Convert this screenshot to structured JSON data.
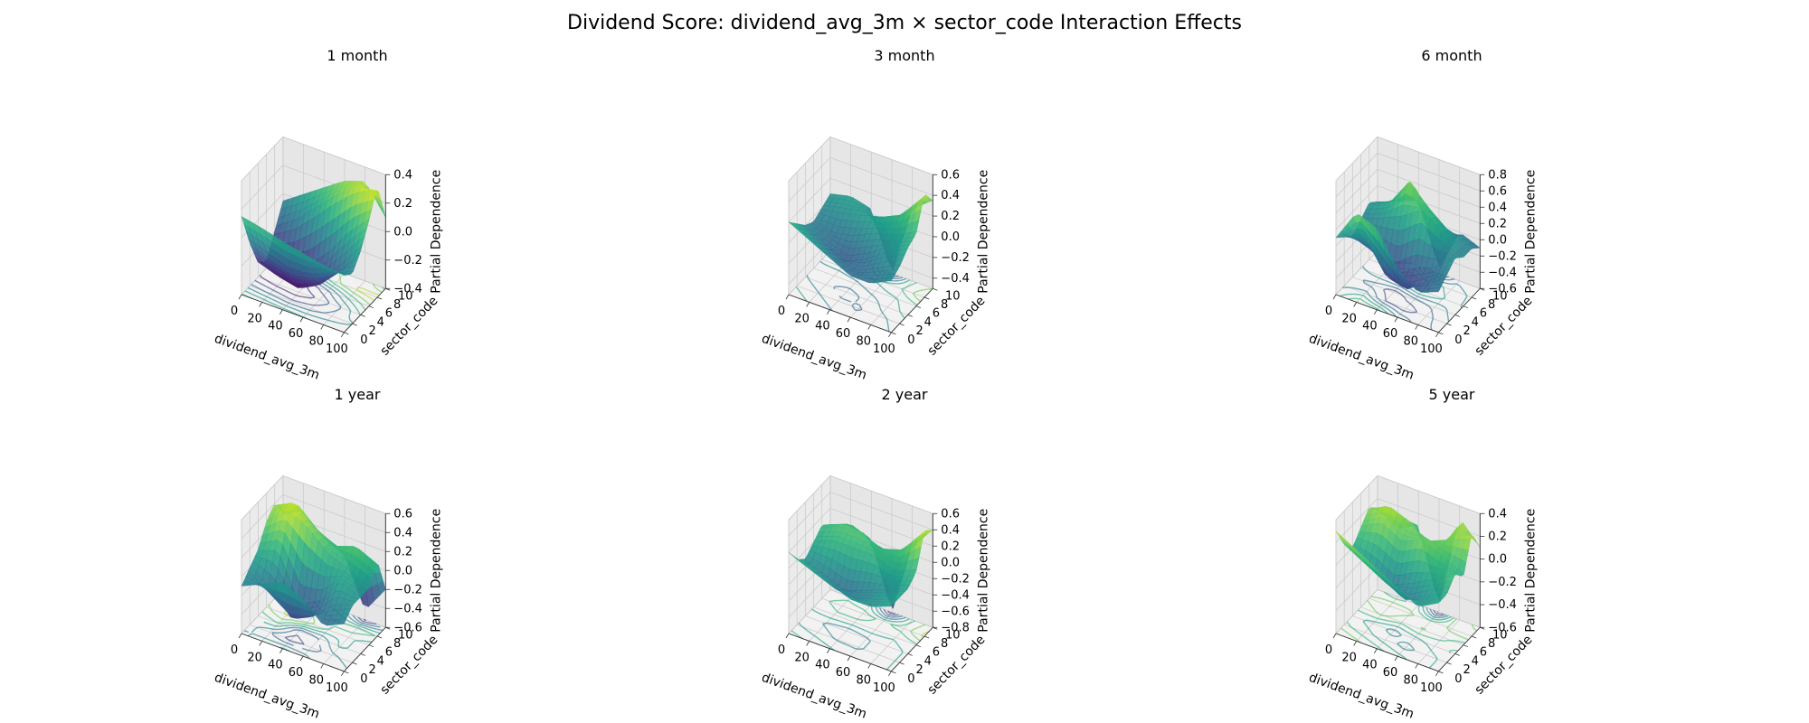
{
  "figure": {
    "title": "Dividend Score: dividend_avg_3m × sector_code Interaction Effects"
  },
  "chart_data": [
    {
      "type": "surface3d",
      "title": "1 month",
      "xlabel": "dividend_avg_3m",
      "ylabel": "sector_code",
      "zlabel": "Partial Dependence",
      "xlim": [
        0,
        100
      ],
      "ylim": [
        0,
        10
      ],
      "zlim": [
        -0.4,
        0.4
      ],
      "xticks": [
        "0",
        "20",
        "40",
        "60",
        "80",
        "100"
      ],
      "yticks": [
        "0",
        "2",
        "4",
        "6",
        "8",
        "10"
      ],
      "zticks": [
        "-0.4",
        "-0.2",
        "0.0",
        "0.2",
        "0.4"
      ],
      "grid": true,
      "colormap": "viridis",
      "x": [
        0,
        20,
        40,
        60,
        80,
        100
      ],
      "y": [
        0,
        2,
        4,
        6,
        8,
        10
      ],
      "z": [
        [
          0.15,
          0.12,
          0.08,
          0.05,
          0.02,
          0.0
        ],
        [
          -0.1,
          -0.15,
          -0.2,
          -0.18,
          -0.1,
          -0.05
        ],
        [
          -0.3,
          -0.35,
          -0.38,
          -0.3,
          -0.15,
          0.05
        ],
        [
          -0.35,
          -0.38,
          -0.3,
          -0.15,
          0.05,
          0.2
        ],
        [
          -0.2,
          -0.1,
          0.05,
          0.2,
          0.32,
          0.38
        ],
        [
          -0.05,
          0.05,
          0.15,
          0.25,
          0.3,
          0.1
        ]
      ]
    },
    {
      "type": "surface3d",
      "title": "3 month",
      "xlabel": "dividend_avg_3m",
      "ylabel": "sector_code",
      "zlabel": "Partial Dependence",
      "xlim": [
        0,
        100
      ],
      "ylim": [
        0,
        10
      ],
      "zlim": [
        -0.5,
        0.6
      ],
      "xticks": [
        "0",
        "20",
        "40",
        "60",
        "80",
        "100"
      ],
      "yticks": [
        "0",
        "2",
        "4",
        "6",
        "8",
        "10"
      ],
      "zticks": [
        "-0.4",
        "-0.2",
        "0.0",
        "0.2",
        "0.4",
        "0.6"
      ],
      "grid": true,
      "colormap": "viridis",
      "x": [
        0,
        20,
        40,
        60,
        80,
        100
      ],
      "y": [
        0,
        2,
        4,
        6,
        8,
        10
      ],
      "z": [
        [
          0.2,
          0.1,
          0.0,
          -0.1,
          -0.1,
          0.0
        ],
        [
          0.1,
          0.0,
          -0.1,
          -0.15,
          -0.05,
          0.05
        ],
        [
          0.0,
          -0.1,
          -0.2,
          -0.1,
          0.05,
          0.15
        ],
        [
          -0.05,
          -0.1,
          -0.05,
          0.05,
          0.1,
          0.2
        ],
        [
          0.0,
          0.05,
          0.1,
          0.15,
          0.25,
          0.5
        ],
        [
          0.05,
          0.1,
          0.05,
          -0.5,
          0.2,
          0.35
        ]
      ]
    },
    {
      "type": "surface3d",
      "title": "6 month",
      "xlabel": "dividend_avg_3m",
      "ylabel": "sector_code",
      "zlabel": "Partial Dependence",
      "xlim": [
        0,
        100
      ],
      "ylim": [
        0,
        10
      ],
      "zlim": [
        -0.6,
        0.8
      ],
      "xticks": [
        "0",
        "20",
        "40",
        "60",
        "80",
        "100"
      ],
      "yticks": [
        "0",
        "2",
        "4",
        "6",
        "8",
        "10"
      ],
      "zticks": [
        "-0.6",
        "-0.4",
        "-0.2",
        "0.0",
        "0.2",
        "0.4",
        "0.6",
        "0.8"
      ],
      "grid": true,
      "colormap": "viridis",
      "x": [
        0,
        20,
        40,
        60,
        80,
        100
      ],
      "y": [
        0,
        2,
        4,
        6,
        8,
        10
      ],
      "z": [
        [
          0.1,
          0.5,
          0.4,
          0.0,
          -0.2,
          -0.1
        ],
        [
          0.0,
          0.1,
          -0.3,
          -0.4,
          -0.2,
          0.0
        ],
        [
          -0.1,
          -0.2,
          -0.4,
          -0.2,
          -0.1,
          0.1
        ],
        [
          0.0,
          0.1,
          0.2,
          0.4,
          0.2,
          0.0
        ],
        [
          0.1,
          0.2,
          0.6,
          0.3,
          0.1,
          0.0
        ],
        [
          0.0,
          0.1,
          0.2,
          -0.55,
          0.0,
          -0.1
        ]
      ]
    },
    {
      "type": "surface3d",
      "title": "1 year",
      "xlabel": "dividend_avg_3m",
      "ylabel": "sector_code",
      "zlabel": "Partial Dependence",
      "xlim": [
        0,
        100
      ],
      "ylim": [
        0,
        10
      ],
      "zlim": [
        -0.6,
        0.6
      ],
      "xticks": [
        "0",
        "20",
        "40",
        "60",
        "80",
        "100"
      ],
      "yticks": [
        "0",
        "2",
        "4",
        "6",
        "8",
        "10"
      ],
      "zticks": [
        "-0.6",
        "-0.4",
        "-0.2",
        "0.0",
        "0.2",
        "0.4",
        "0.6"
      ],
      "grid": true,
      "colormap": "viridis",
      "x": [
        0,
        20,
        40,
        60,
        80,
        100
      ],
      "y": [
        0,
        2,
        4,
        6,
        8,
        10
      ],
      "z": [
        [
          -0.1,
          0.0,
          0.1,
          0.0,
          -0.2,
          -0.1
        ],
        [
          0.0,
          -0.2,
          -0.4,
          -0.3,
          -0.1,
          0.0
        ],
        [
          0.1,
          0.2,
          -0.3,
          -0.2,
          0.1,
          0.0
        ],
        [
          0.3,
          0.5,
          0.4,
          0.2,
          0.1,
          0.0
        ],
        [
          0.4,
          0.5,
          0.3,
          0.2,
          0.3,
          0.2
        ],
        [
          0.2,
          0.3,
          0.1,
          0.0,
          -0.5,
          -0.2
        ]
      ]
    },
    {
      "type": "surface3d",
      "title": "2 year",
      "xlabel": "dividend_avg_3m",
      "ylabel": "sector_code",
      "zlabel": "Partial Dependence",
      "xlim": [
        0,
        100
      ],
      "ylim": [
        0,
        10
      ],
      "zlim": [
        -0.8,
        0.6
      ],
      "xticks": [
        "0",
        "20",
        "40",
        "60",
        "80",
        "100"
      ],
      "yticks": [
        "0",
        "2",
        "4",
        "6",
        "8",
        "10"
      ],
      "zticks": [
        "-0.8",
        "-0.6",
        "-0.4",
        "-0.2",
        "0.0",
        "0.2",
        "0.4",
        "0.6"
      ],
      "grid": true,
      "colormap": "viridis",
      "x": [
        0,
        20,
        40,
        60,
        80,
        100
      ],
      "y": [
        0,
        2,
        4,
        6,
        8,
        10
      ],
      "z": [
        [
          0.2,
          0.1,
          0.0,
          -0.1,
          -0.1,
          0.0
        ],
        [
          0.0,
          -0.1,
          -0.2,
          -0.2,
          -0.1,
          0.0
        ],
        [
          -0.1,
          -0.2,
          -0.3,
          -0.2,
          -0.1,
          0.0
        ],
        [
          0.0,
          0.1,
          0.1,
          0.1,
          0.0,
          0.1
        ],
        [
          0.1,
          0.2,
          0.2,
          0.1,
          0.2,
          0.5
        ],
        [
          0.0,
          0.1,
          0.0,
          -0.8,
          0.1,
          0.4
        ]
      ]
    },
    {
      "type": "surface3d",
      "title": "5 year",
      "xlabel": "dividend_avg_3m",
      "ylabel": "sector_code",
      "zlabel": "Partial Dependence",
      "xlim": [
        0,
        100
      ],
      "ylim": [
        0,
        10
      ],
      "zlim": [
        -0.6,
        0.4
      ],
      "xticks": [
        "0",
        "20",
        "40",
        "60",
        "80",
        "100"
      ],
      "yticks": [
        "0",
        "2",
        "4",
        "6",
        "8",
        "10"
      ],
      "zticks": [
        "-0.6",
        "-0.4",
        "-0.2",
        "0.0",
        "0.2",
        "0.4"
      ],
      "grid": true,
      "colormap": "viridis",
      "x": [
        0,
        20,
        40,
        60,
        80,
        100
      ],
      "y": [
        0,
        2,
        4,
        6,
        8,
        10
      ],
      "z": [
        [
          0.3,
          0.2,
          0.1,
          0.0,
          -0.1,
          0.0
        ],
        [
          0.1,
          0.0,
          -0.1,
          -0.2,
          -0.1,
          0.0
        ],
        [
          0.0,
          -0.1,
          -0.2,
          -0.1,
          0.0,
          0.1
        ],
        [
          0.1,
          0.2,
          0.1,
          0.2,
          0.1,
          0.0
        ],
        [
          0.2,
          0.3,
          0.2,
          0.1,
          0.2,
          0.3
        ],
        [
          0.1,
          0.0,
          0.1,
          -0.55,
          0.3,
          0.1
        ]
      ]
    }
  ]
}
